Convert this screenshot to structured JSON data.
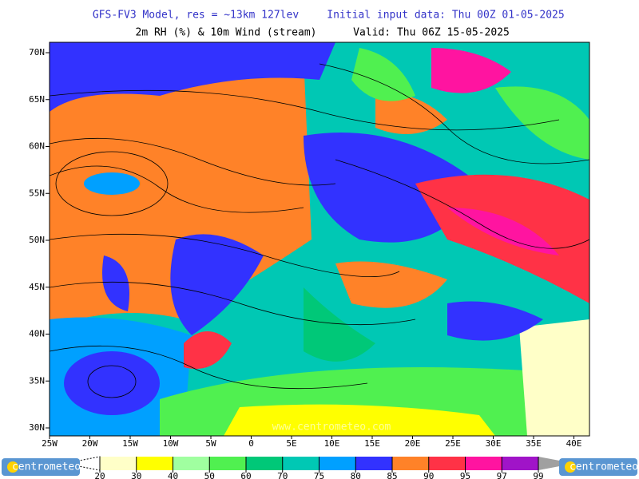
{
  "header": {
    "model": "GFS-FV3 Model, res = ~13km 127lev",
    "init": "Initial input data: Thu 00Z 01-05-2025",
    "field": "2m RH (%) & 10m Wind (stream)",
    "valid": "Valid: Thu 06Z 15-05-2025"
  },
  "map": {
    "lat_labels": [
      "70N",
      "65N",
      "60N",
      "55N",
      "50N",
      "45N",
      "40N",
      "35N",
      "30N"
    ],
    "lon_labels": [
      "25W",
      "20W",
      "15W",
      "10W",
      "5W",
      "0",
      "5E",
      "10E",
      "15E",
      "20E",
      "25E",
      "30E",
      "35E",
      "40E"
    ],
    "watermark": "www.centrometeo.com"
  },
  "legend": {
    "levels": [
      20,
      30,
      40,
      50,
      60,
      70,
      75,
      80,
      85,
      90,
      95,
      97,
      99
    ],
    "colors": [
      "#ffffff",
      "#ffffc8",
      "#ffff00",
      "#a0ffa0",
      "#50f050",
      "#00c878",
      "#00c8b4",
      "#00a0ff",
      "#3232ff",
      "#ff8228",
      "#ff3246",
      "#ff14a0",
      "#a014c8",
      "#a0a0a0"
    ]
  },
  "logo": {
    "left": "centrometeo",
    "right": "centrometeo"
  }
}
